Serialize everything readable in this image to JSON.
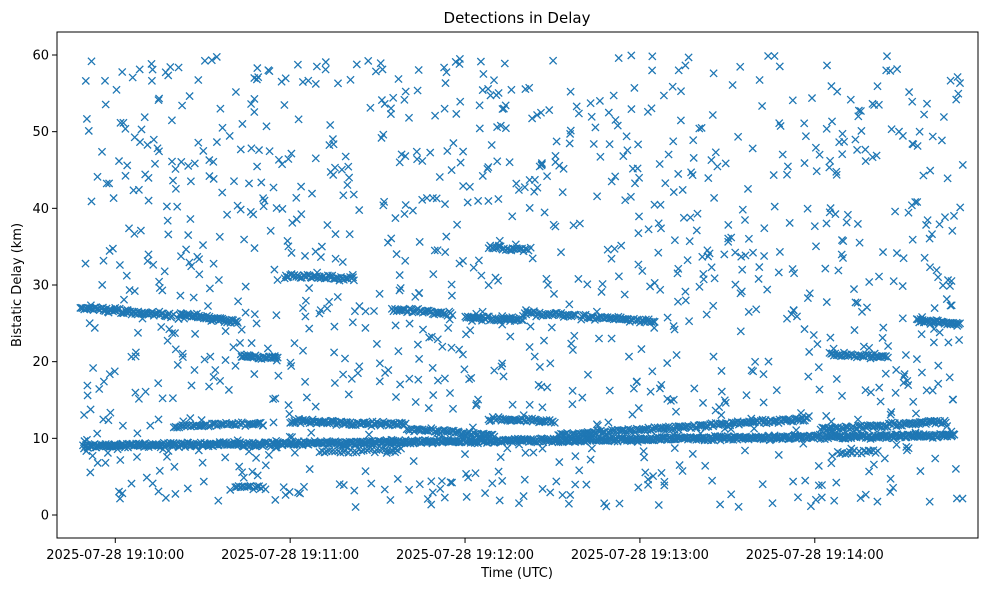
{
  "chart_data": {
    "type": "scatter",
    "title": "Detections in Delay",
    "xlabel": "Time (UTC)",
    "ylabel": "Bistatic Delay (km)",
    "marker": "x",
    "color": "#1f77b4",
    "x_unit": "seconds since 2025-07-28 19:09:40",
    "xlim": [
      0,
      316
    ],
    "ylim": [
      -3,
      63
    ],
    "xticks": [
      {
        "value": 20,
        "label": "2025-07-28 19:10:00"
      },
      {
        "value": 80,
        "label": "2025-07-28 19:11:00"
      },
      {
        "value": 140,
        "label": "2025-07-28 19:12:00"
      },
      {
        "value": 200,
        "label": "2025-07-28 19:13:00"
      },
      {
        "value": 260,
        "label": "2025-07-28 19:14:00"
      }
    ],
    "yticks": [
      {
        "value": 0,
        "label": "0"
      },
      {
        "value": 10,
        "label": "10"
      },
      {
        "value": 20,
        "label": "20"
      },
      {
        "value": 30,
        "label": "30"
      },
      {
        "value": 40,
        "label": "40"
      },
      {
        "value": 50,
        "label": "50"
      },
      {
        "value": 60,
        "label": "60"
      }
    ],
    "x_start": 9,
    "x_end": 311,
    "noise": {
      "count": 1150,
      "y_min": 1,
      "y_max": 60
    },
    "tracks": [
      {
        "x0": 9,
        "x1": 308,
        "y0": 9.0,
        "y1": 10.4,
        "step": 0.35
      },
      {
        "x0": 8,
        "x1": 40,
        "y0": 27.0,
        "y1": 26.0,
        "step": 0.45
      },
      {
        "x0": 42,
        "x1": 62,
        "y0": 26.2,
        "y1": 25.2,
        "step": 0.4
      },
      {
        "x0": 63,
        "x1": 76,
        "y0": 20.8,
        "y1": 20.4,
        "step": 0.4
      },
      {
        "x0": 40,
        "x1": 70,
        "y0": 11.5,
        "y1": 12.0,
        "step": 0.6
      },
      {
        "x0": 80,
        "x1": 120,
        "y0": 12.2,
        "y1": 11.8,
        "step": 0.45
      },
      {
        "x0": 78,
        "x1": 102,
        "y0": 31.2,
        "y1": 30.8,
        "step": 0.5
      },
      {
        "x0": 115,
        "x1": 135,
        "y0": 26.8,
        "y1": 26.2,
        "step": 0.5
      },
      {
        "x0": 140,
        "x1": 160,
        "y0": 25.8,
        "y1": 25.4,
        "step": 0.45
      },
      {
        "x0": 160,
        "x1": 178,
        "y0": 26.3,
        "y1": 26.0,
        "step": 0.5
      },
      {
        "x0": 148,
        "x1": 162,
        "y0": 34.8,
        "y1": 34.6,
        "step": 0.6
      },
      {
        "x0": 120,
        "x1": 150,
        "y0": 11.2,
        "y1": 10.4,
        "step": 0.5
      },
      {
        "x0": 148,
        "x1": 170,
        "y0": 12.6,
        "y1": 12.2,
        "step": 0.5
      },
      {
        "x0": 180,
        "x1": 205,
        "y0": 25.9,
        "y1": 25.2,
        "step": 0.5
      },
      {
        "x0": 172,
        "x1": 258,
        "y0": 10.4,
        "y1": 12.6,
        "step": 0.5
      },
      {
        "x0": 262,
        "x1": 305,
        "y0": 11.2,
        "y1": 12.2,
        "step": 0.5
      },
      {
        "x0": 265,
        "x1": 285,
        "y0": 21.0,
        "y1": 20.6,
        "step": 0.5
      },
      {
        "x0": 295,
        "x1": 310,
        "y0": 25.4,
        "y1": 24.9,
        "step": 0.4
      },
      {
        "x0": 90,
        "x1": 118,
        "y0": 8.2,
        "y1": 8.6,
        "step": 0.9
      },
      {
        "x0": 268,
        "x1": 282,
        "y0": 8.0,
        "y1": 8.4,
        "step": 0.8
      },
      {
        "x0": 61,
        "x1": 72,
        "y0": 3.7,
        "y1": 3.6,
        "step": 0.7
      }
    ],
    "seed": 20250728
  }
}
